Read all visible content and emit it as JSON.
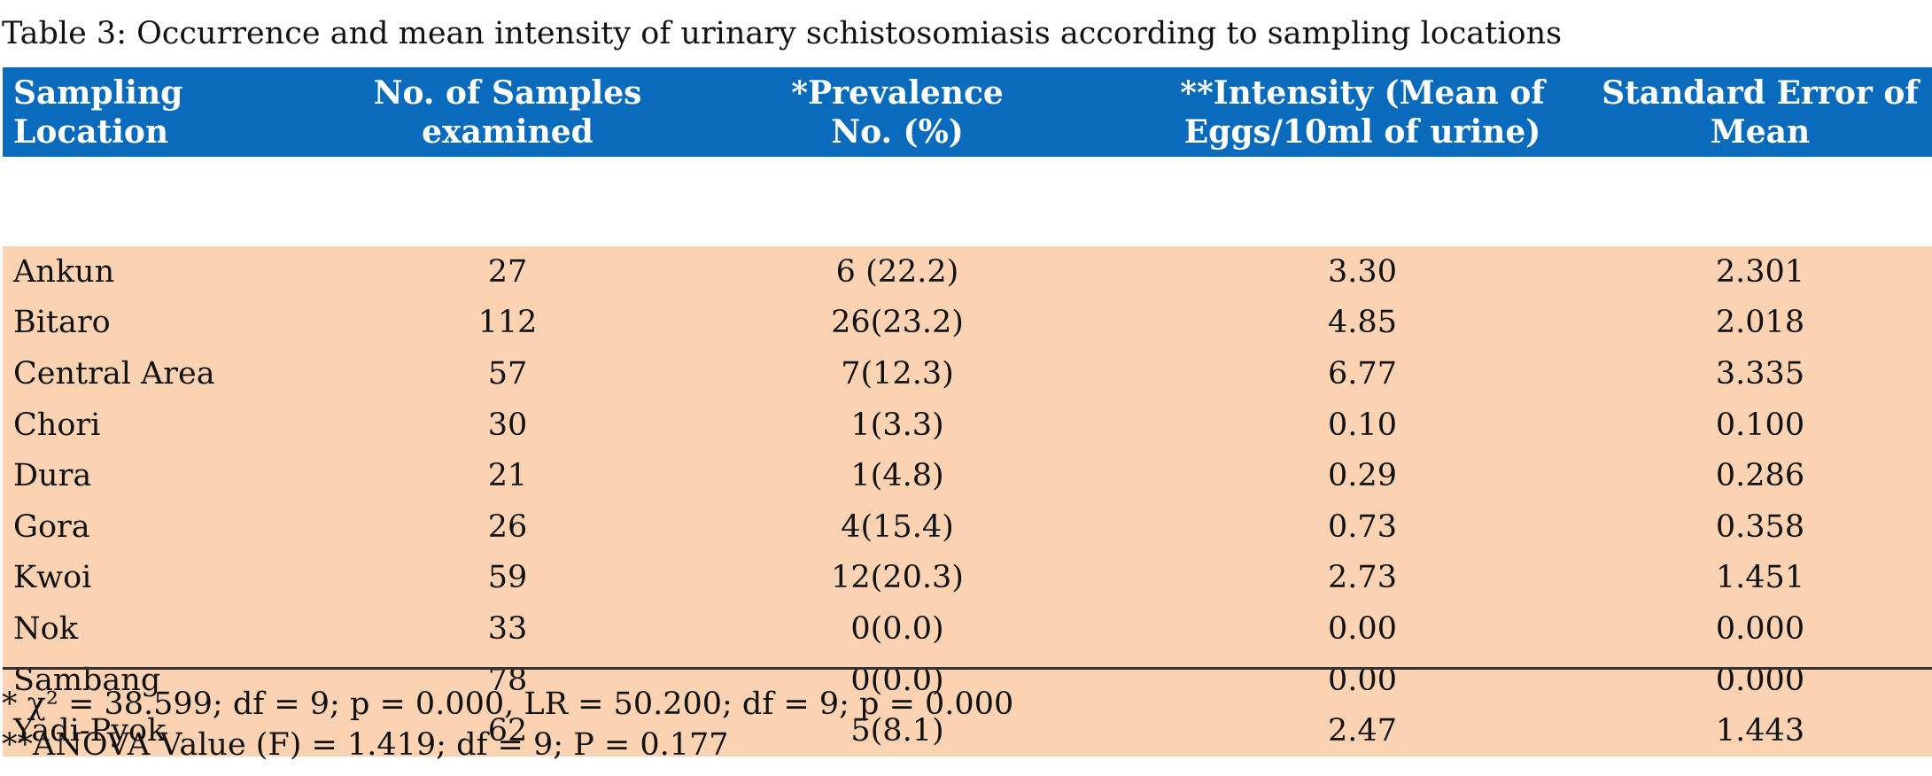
{
  "caption": "Table 3: Occurrence and mean intensity of urinary schistosomiasis according to sampling locations",
  "table": {
    "headers": [
      {
        "line1": "Sampling",
        "line2": "Location"
      },
      {
        "line1": "No. of Samples",
        "line2": "examined"
      },
      {
        "line1": "*Prevalence",
        "line2": "No. (%)"
      },
      {
        "line1": "**Intensity (Mean of",
        "line2": "Eggs/10ml of urine)"
      },
      {
        "line1": "Standard Error of",
        "line2": "Mean"
      }
    ],
    "rows": [
      [
        "Ankun",
        "27",
        "6 (22.2)",
        "3.30",
        "2.301"
      ],
      [
        "Bitaro",
        "112",
        "26(23.2)",
        "4.85",
        "2.018"
      ],
      [
        "Central Area",
        "57",
        "7(12.3)",
        "6.77",
        "3.335"
      ],
      [
        "Chori",
        "30",
        "1(3.3)",
        "0.10",
        "0.100"
      ],
      [
        "Dura",
        "21",
        "1(4.8)",
        "0.29",
        "0.286"
      ],
      [
        "Gora",
        "26",
        "4(15.4)",
        "0.73",
        "0.358"
      ],
      [
        "Kwoi",
        "59",
        "12(20.3)",
        "2.73",
        "1.451"
      ],
      [
        "Nok",
        "33",
        "0(0.0)",
        "0.00",
        "0.000"
      ],
      [
        "Sambang",
        "78",
        "0(0.0)",
        "0.00",
        "0.000"
      ],
      [
        "Yadi-Pyok",
        "62",
        "5(8.1)",
        "2.47",
        "1.443"
      ]
    ]
  },
  "footnotes": {
    "chi_square": "* χ² = 38.599; df = 9; p = 0.000, LR = 50.200; df = 9; p = 0.000",
    "anova": "**ANOVA Value (F) = 1.419; df = 9; P = 0.177"
  },
  "colors": {
    "header_background": "#0a6bbd",
    "header_text": "#ffffff",
    "body_background": "#fbd3b2"
  }
}
